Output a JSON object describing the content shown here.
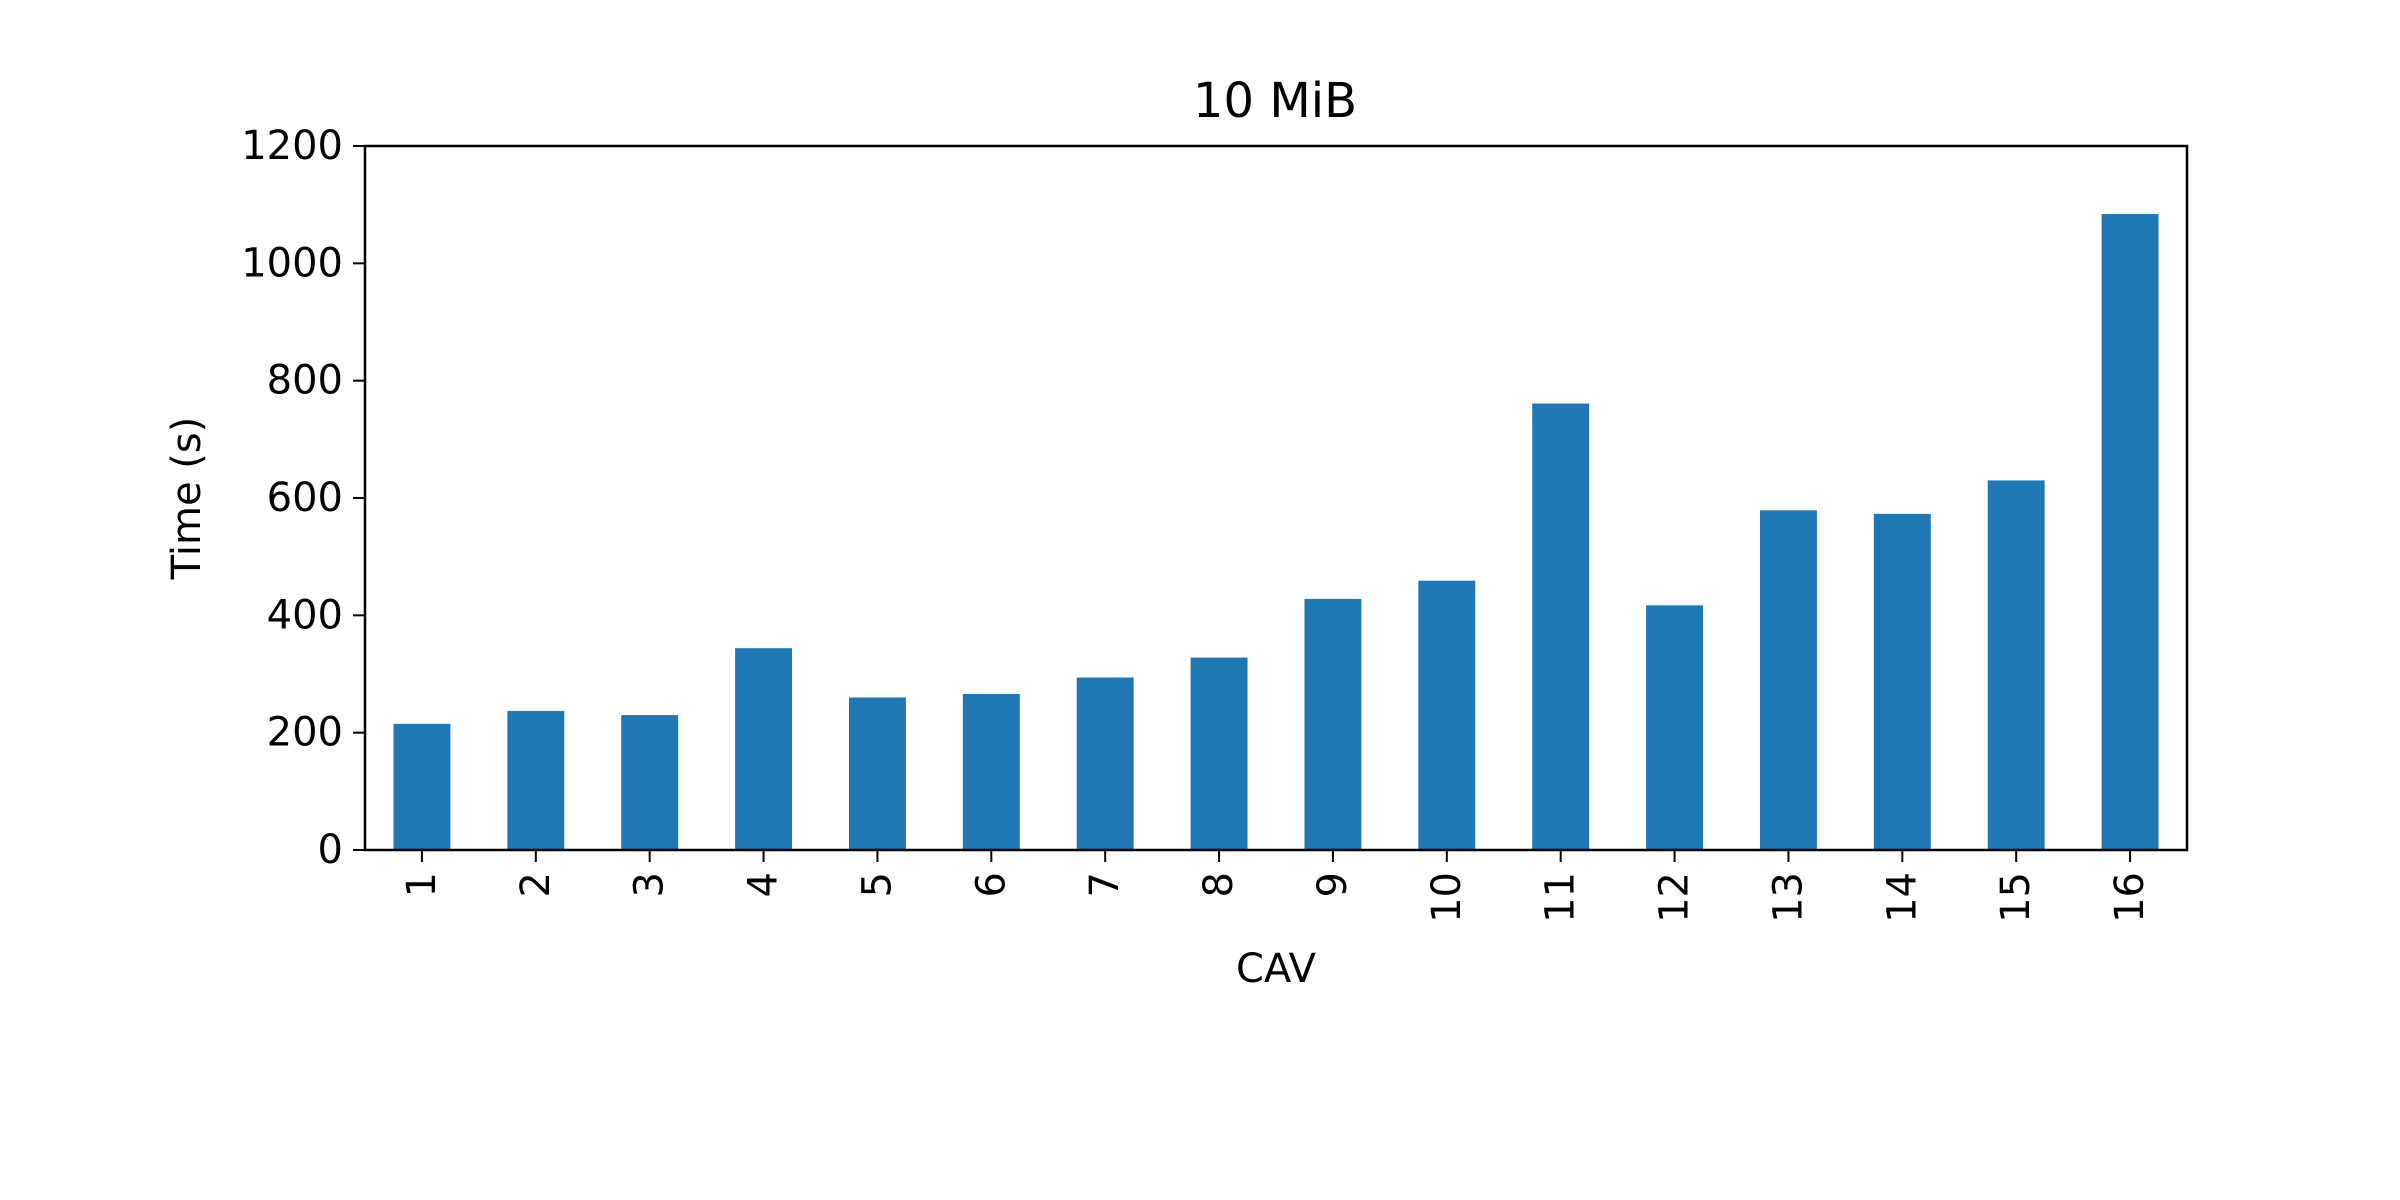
{
  "chart_data": {
    "type": "bar",
    "title": "10 MiB",
    "xlabel": "CAV",
    "ylabel": "Time (s)",
    "categories": [
      "1",
      "2",
      "3",
      "4",
      "5",
      "6",
      "7",
      "8",
      "9",
      "10",
      "11",
      "12",
      "13",
      "14",
      "15",
      "16"
    ],
    "values": [
      215,
      237,
      230,
      344,
      260,
      266,
      294,
      328,
      428,
      459,
      761,
      417,
      579,
      573,
      630,
      1084
    ],
    "ylim": [
      0,
      1200
    ],
    "yticks": [
      0,
      200,
      400,
      600,
      800,
      1000,
      1200
    ],
    "grid": false,
    "legend": "none",
    "bar_color": "#1f77b4"
  }
}
